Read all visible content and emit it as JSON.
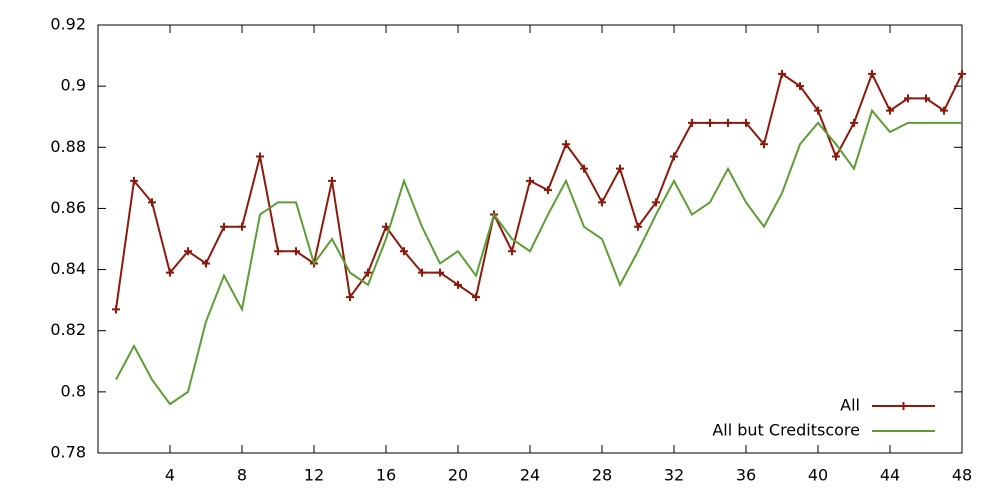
{
  "chart_data": {
    "type": "line",
    "x": [
      1,
      2,
      3,
      4,
      5,
      6,
      7,
      8,
      9,
      10,
      11,
      12,
      13,
      14,
      15,
      16,
      17,
      18,
      19,
      20,
      21,
      22,
      23,
      24,
      25,
      26,
      27,
      28,
      29,
      30,
      31,
      32,
      33,
      34,
      35,
      36,
      37,
      38,
      39,
      40,
      41,
      42,
      43,
      44,
      45,
      46,
      47,
      48
    ],
    "series": [
      {
        "name": "All",
        "color": "#8b1a0e",
        "marker": "plus",
        "values": [
          0.827,
          0.869,
          0.862,
          0.839,
          0.846,
          0.842,
          0.854,
          0.854,
          0.877,
          0.846,
          0.846,
          0.842,
          0.869,
          0.831,
          0.839,
          0.854,
          0.846,
          0.839,
          0.839,
          0.835,
          0.831,
          0.858,
          0.846,
          0.869,
          0.866,
          0.881,
          0.873,
          0.862,
          0.873,
          0.854,
          0.862,
          0.877,
          0.888,
          0.888,
          0.888,
          0.888,
          0.881,
          0.904,
          0.9,
          0.892,
          0.877,
          0.888,
          0.904,
          0.892,
          0.896,
          0.896,
          0.892,
          0.904
        ]
      },
      {
        "name": "All but Creditscore",
        "color": "#5e9c36",
        "values": [
          0.804,
          0.815,
          0.804,
          0.796,
          0.8,
          0.823,
          0.838,
          0.827,
          0.858,
          0.862,
          0.862,
          0.842,
          0.85,
          0.839,
          0.835,
          0.85,
          0.869,
          0.854,
          0.842,
          0.846,
          0.838,
          0.858,
          0.85,
          0.846,
          0.858,
          0.869,
          0.854,
          0.85,
          0.835,
          0.846,
          0.858,
          0.869,
          0.858,
          0.862,
          0.873,
          0.862,
          0.854,
          0.865,
          0.881,
          0.888,
          0.881,
          0.873,
          0.892,
          0.885,
          0.888,
          0.888,
          0.888,
          0.888
        ]
      }
    ],
    "xlim": [
      0,
      48
    ],
    "xticks": [
      4,
      8,
      12,
      16,
      20,
      24,
      28,
      32,
      36,
      40,
      44,
      48
    ],
    "ylim": [
      0.78,
      0.92
    ],
    "yticks": [
      0.78,
      0.8,
      0.82,
      0.84,
      0.86,
      0.88,
      0.9,
      0.92
    ],
    "grid": false,
    "legend": "bottom-right"
  }
}
